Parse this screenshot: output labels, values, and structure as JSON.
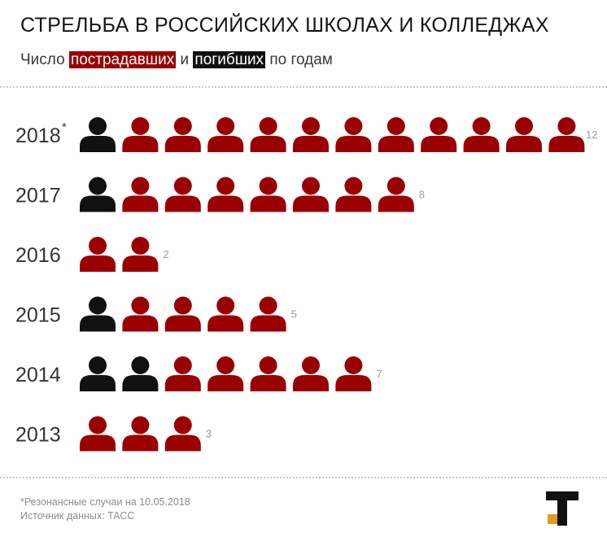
{
  "header": {
    "title": "СТРЕЛЬБА В РОССИЙСКИХ ШКОЛАХ И КОЛЛЕДЖАХ",
    "subtitle_prefix": "Число",
    "subtitle_injured": "пострадавших",
    "subtitle_and": "и",
    "subtitle_killed": "погибших",
    "subtitle_suffix": "по годам"
  },
  "chart_data": {
    "type": "pictogram",
    "title": "СТРЕЛЬБА В РОССИЙСКИХ ШКОЛАХ И КОЛЛЕДЖАХ",
    "subtitle": "Число пострадавших и погибших по годам",
    "categories": [
      "2018",
      "2017",
      "2016",
      "2015",
      "2014",
      "2013"
    ],
    "category_markers": [
      "*",
      "",
      "",
      "",
      "",
      ""
    ],
    "series": [
      {
        "name": "погибших",
        "color": "#111111",
        "values": [
          1,
          1,
          0,
          1,
          2,
          0
        ]
      },
      {
        "name": "пострадавших",
        "color": "#9b0000",
        "values": [
          11,
          7,
          2,
          4,
          5,
          3
        ]
      }
    ],
    "totals": [
      12,
      8,
      2,
      5,
      7,
      3
    ]
  },
  "footer": {
    "note": "*Резонансные случаи на 10.05.2018",
    "source": "Источник данных: ТАСС"
  },
  "logo": {
    "name": "tass-logo-icon"
  }
}
